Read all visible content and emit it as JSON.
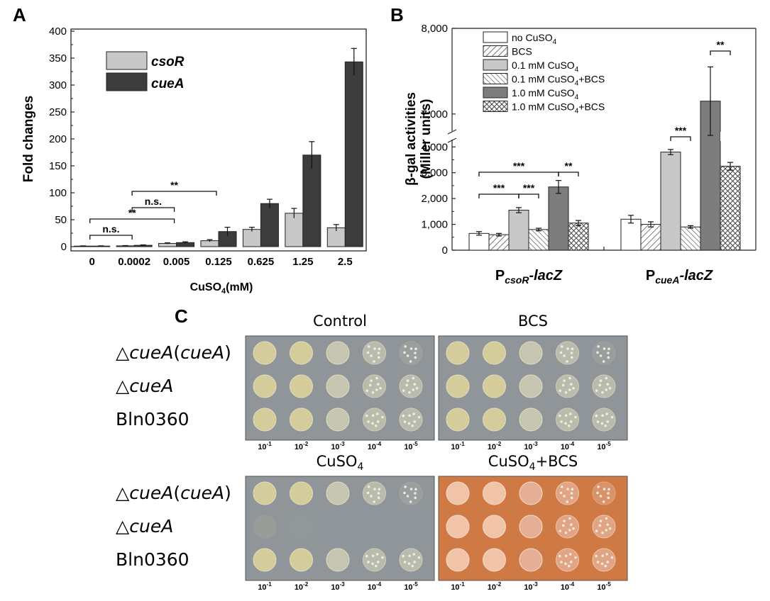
{
  "panels": {
    "a": "A",
    "b": "B",
    "c": "C"
  },
  "colors": {
    "csoR": "#c8c8c8",
    "cueA": "#3c3c3c",
    "plate_gray": "#8f9598",
    "plate_orange": "#cf7a45"
  },
  "chart_data": [
    {
      "type": "bar",
      "categories": [
        "0",
        "0.0002",
        "0.005",
        "0.125",
        "0.625",
        "1.25",
        "2.5"
      ],
      "series": [
        {
          "name": "csoR",
          "values": [
            1,
            1.5,
            6,
            11,
            32,
            62,
            35
          ],
          "errors": [
            0.5,
            0.5,
            1,
            2,
            4,
            9,
            6
          ]
        },
        {
          "name": "cueA",
          "values": [
            1,
            2.5,
            7.5,
            28,
            80,
            170,
            343
          ],
          "errors": [
            0.5,
            0.8,
            1.5,
            8,
            8,
            25,
            25
          ]
        }
      ],
      "ylabel": "Fold changes",
      "xlabel_main": "CuSO",
      "xlabel_sub": "4",
      "xlabel_tail": "(mM)",
      "ylim": [
        0,
        400
      ],
      "yticks": [
        "0",
        "50",
        "100",
        "150",
        "200",
        "250",
        "300",
        "350",
        "400"
      ],
      "legend": "top-left",
      "annotations": [
        {
          "label": "n.s.",
          "from": "0",
          "to": "0.0002"
        },
        {
          "label": "**",
          "from": "0",
          "to": "0.005"
        },
        {
          "label": "n.s.",
          "from": "0.0002",
          "to": "0.005"
        },
        {
          "label": "**",
          "from": "0.0002",
          "to": "0.125"
        }
      ]
    },
    {
      "type": "bar",
      "categories": [
        "P_csoR-lacZ",
        "P_cueA-lacZ"
      ],
      "category_labels": [
        {
          "main": "P",
          "sub": "csoR",
          "tail": "-lacZ"
        },
        {
          "main": "P",
          "sub": "cueA",
          "tail": "-lacZ"
        }
      ],
      "series": [
        {
          "label": "no CuSO",
          "sub": "4",
          "tail": "",
          "values": [
            650,
            1200
          ],
          "errors": [
            70,
            150
          ]
        },
        {
          "label": "BCS",
          "sub": "",
          "tail": "",
          "values": [
            600,
            1000
          ],
          "errors": [
            50,
            100
          ]
        },
        {
          "label": "0.1 mM CuSO",
          "sub": "4",
          "tail": "",
          "values": [
            1550,
            3800
          ],
          "errors": [
            100,
            100
          ]
        },
        {
          "label": "0.1 mM CuSO",
          "sub": "4",
          "tail": "+BCS",
          "values": [
            800,
            900
          ],
          "errors": [
            50,
            50
          ]
        },
        {
          "label": "1.0 mM CuSO",
          "sub": "4",
          "tail": "",
          "values": [
            2450,
            7150
          ],
          "errors": [
            250,
            400
          ]
        },
        {
          "label": "1.0 mM CuSO",
          "sub": "4",
          "tail": "+BCS",
          "values": [
            1050,
            3250
          ],
          "errors": [
            100,
            150
          ]
        }
      ],
      "ylabel_line1": "β-gal activities",
      "ylabel_line2": "(Miller units)",
      "y_break": [
        4200,
        6800
      ],
      "ylim": [
        0,
        8000
      ],
      "yticks": [
        "0",
        "1,000",
        "2,000",
        "3,000",
        "4,000",
        "7,000",
        "8,000"
      ],
      "legend": "top-left",
      "annotations": [
        {
          "label": "***",
          "group": 0,
          "from": 0,
          "to": 4
        },
        {
          "label": "***",
          "group": 0,
          "from": 0,
          "to": 2
        },
        {
          "label": "***",
          "group": 0,
          "from": 2,
          "to": 3
        },
        {
          "label": "**",
          "group": 0,
          "from": 4,
          "to": 5
        },
        {
          "label": "***",
          "group": 1,
          "from": 2,
          "to": 3
        },
        {
          "label": "**",
          "group": 1,
          "from": 4,
          "to": 5
        }
      ]
    }
  ],
  "panel_c": {
    "strains": [
      {
        "pre": "△",
        "italic": "cueA",
        "post": "(",
        "italic2": "cueA",
        "post2": ")"
      },
      {
        "pre": "△",
        "italic": "cueA",
        "post": "",
        "italic2": "",
        "post2": ""
      },
      {
        "pre": "Bln0360",
        "italic": "",
        "post": "",
        "italic2": "",
        "post2": ""
      }
    ],
    "plates": [
      {
        "title": "Control",
        "title_sub": "",
        "title_tail": "",
        "growth": [
          [
            1,
            1,
            1,
            0.7,
            0.25
          ],
          [
            1,
            1,
            1,
            0.8,
            0.6
          ],
          [
            1,
            1,
            1,
            0.8,
            0.6
          ]
        ]
      },
      {
        "title": "BCS",
        "title_sub": "",
        "title_tail": "",
        "growth": [
          [
            1,
            1,
            1,
            0.7,
            0.2
          ],
          [
            1,
            1,
            1,
            0.8,
            0.6
          ],
          [
            1,
            1,
            1,
            0.8,
            0.6
          ]
        ]
      },
      {
        "title": "CuSO",
        "title_sub": "4",
        "title_tail": "",
        "growth": [
          [
            1,
            1,
            0.9,
            0.6,
            0.25
          ],
          [
            0.15,
            0.05,
            0,
            0,
            0
          ],
          [
            1,
            1,
            1,
            0.8,
            0.6
          ]
        ]
      },
      {
        "title": "CuSO",
        "title_sub": "4",
        "title_tail": "+BCS",
        "growth": [
          [
            1,
            1,
            1,
            0.8,
            0.5
          ],
          [
            1,
            1,
            1,
            0.8,
            0.6
          ],
          [
            1,
            1,
            1,
            0.8,
            0.6
          ]
        ]
      }
    ],
    "dilutions": [
      {
        "base": "10",
        "exp": "-1"
      },
      {
        "base": "10",
        "exp": "-2"
      },
      {
        "base": "10",
        "exp": "-3"
      },
      {
        "base": "10",
        "exp": "-4"
      },
      {
        "base": "10",
        "exp": "-5"
      }
    ]
  }
}
